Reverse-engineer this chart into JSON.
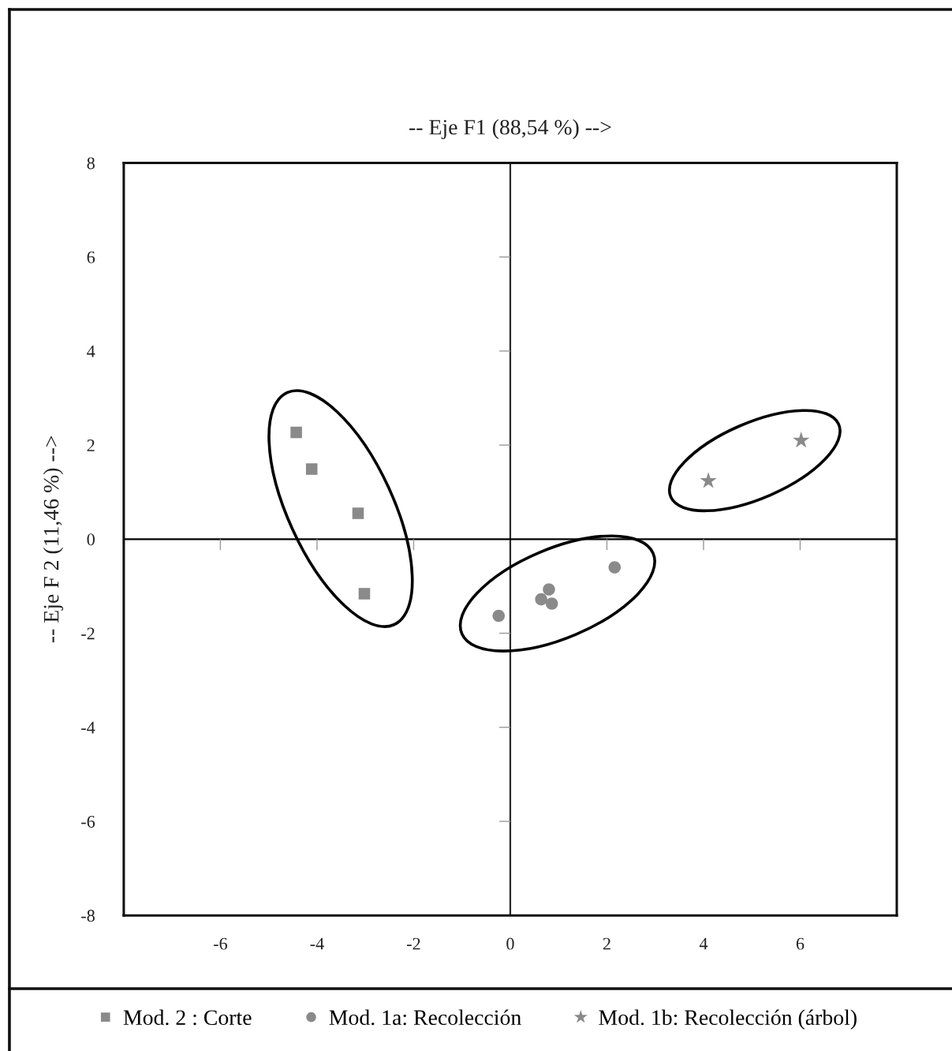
{
  "chart_data": {
    "type": "scatter",
    "xlabel": "-- Eje F1 (88,54 %) -->",
    "ylabel": "-- Eje F 2 (11,46 %) -->",
    "xlim": [
      -8,
      8
    ],
    "ylim": [
      -8,
      8
    ],
    "xticks": [
      -6,
      -4,
      -2,
      0,
      2,
      4,
      6
    ],
    "yticks": [
      -8,
      -6,
      -4,
      -2,
      0,
      2,
      4,
      6,
      8
    ],
    "ref_lines": [
      {
        "axis": "x",
        "value": 0,
        "color": "#2a2a2a"
      },
      {
        "axis": "y",
        "value": 0,
        "color": "#000000"
      }
    ],
    "legend": "bottom",
    "series": [
      {
        "name": "Mod. 2 : Corte",
        "color": "#8a8a8a",
        "marker": "square",
        "x": [
          -4.43,
          -4.11,
          -3.15,
          -3.02
        ],
        "values": [
          2.27,
          1.49,
          0.55,
          -1.16
        ]
      },
      {
        "name": "Mod. 1a: Recolección",
        "color": "#8a8a8a",
        "marker": "circle",
        "x": [
          -0.24,
          0.64,
          0.8,
          0.86,
          2.16
        ],
        "values": [
          -1.63,
          -1.28,
          -1.07,
          -1.37,
          -0.6
        ]
      },
      {
        "name": "Mod. 1b: Recolección (árbol)",
        "color": "#8a8a8a",
        "marker": "star",
        "x": [
          4.1,
          6.02
        ],
        "values": [
          1.24,
          2.1
        ]
      }
    ]
  }
}
